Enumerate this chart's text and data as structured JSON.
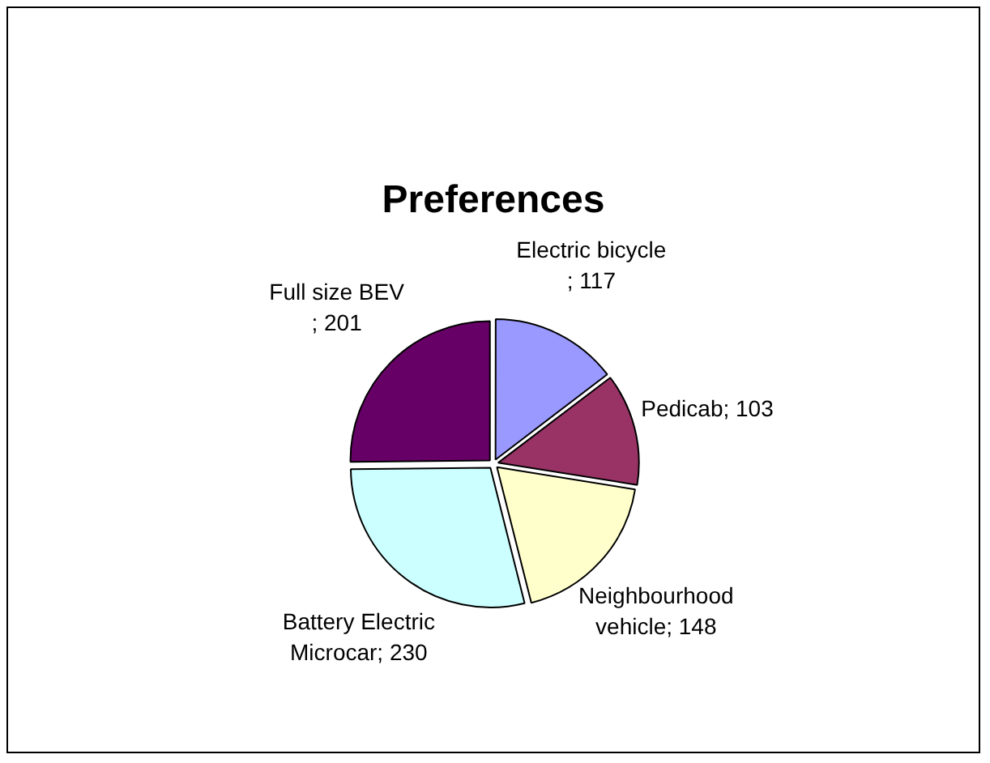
{
  "chart_data": {
    "type": "pie",
    "title": "Preferences",
    "categories": [
      "Electric bicycle",
      "Pedicab",
      "Neighbourhood vehicle",
      "Battery Electric Microcar",
      "Full size BEV"
    ],
    "values": [
      117,
      103,
      148,
      230,
      201
    ],
    "colors": [
      "#9999ff",
      "#993366",
      "#ffffcc",
      "#ccffff",
      "#660066"
    ],
    "value_labels": [
      "; 117",
      "; 103",
      "; 148",
      "; 230",
      "; 201"
    ],
    "legend": false
  }
}
